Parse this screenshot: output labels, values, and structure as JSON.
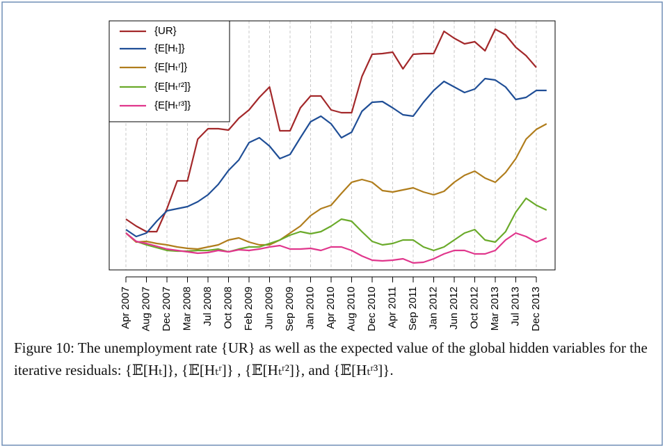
{
  "chart_data": {
    "type": "line",
    "categories": [
      "Apr 2007",
      null,
      "Aug 2007",
      null,
      "Dec 2007",
      null,
      "Mar 2008",
      null,
      "Jul 2008",
      null,
      "Oct 2008",
      null,
      "Feb 2009",
      null,
      "Jun 2009",
      null,
      "Sep 2009",
      null,
      "Jan 2010",
      null,
      "Apr 2010",
      null,
      "Aug 2010",
      null,
      "Dec 2010",
      null,
      "Apr 2011",
      null,
      "Sep 2011",
      null,
      "Jan 2012",
      null,
      "Jun 2012",
      null,
      "Oct 2012",
      null,
      "Mar 2013",
      null,
      "Jul 2013",
      null,
      "Dec 2013",
      null
    ],
    "series": [
      {
        "name": "{UR}",
        "color": "#a3282a",
        "values": [
          73,
          63,
          55,
          55,
          88,
          128,
          128,
          188,
          203,
          203,
          201,
          218,
          230,
          248,
          263,
          200,
          200,
          233,
          250,
          250,
          230,
          226,
          226,
          278,
          310,
          311,
          313,
          289,
          310,
          311,
          311,
          343,
          333,
          325,
          328,
          315,
          346,
          338,
          320,
          308,
          291,
          null
        ]
      },
      {
        "name": "{E[Hₜ]}",
        "color": "#1f4e96",
        "values": [
          58,
          48,
          53,
          70,
          85,
          88,
          91,
          98,
          108,
          123,
          143,
          158,
          183,
          190,
          178,
          160,
          166,
          190,
          213,
          221,
          210,
          190,
          198,
          228,
          241,
          242,
          233,
          223,
          221,
          241,
          258,
          271,
          263,
          255,
          260,
          275,
          273,
          263,
          245,
          248,
          258,
          258
        ]
      },
      {
        "name": "{E[Hₜʳ]}",
        "color": "#b07d1c",
        "values": [
          53,
          40,
          41,
          38,
          36,
          33,
          31,
          30,
          33,
          36,
          43,
          46,
          40,
          36,
          36,
          43,
          53,
          63,
          78,
          88,
          93,
          110,
          126,
          130,
          126,
          114,
          112,
          115,
          118,
          112,
          108,
          113,
          126,
          136,
          142,
          132,
          126,
          140,
          160,
          188,
          202,
          210
        ]
      },
      {
        "name": "{E[Hₜʳ²]}",
        "color": "#6aaa2a",
        "values": [
          53,
          41,
          36,
          32,
          28,
          27,
          27,
          28,
          28,
          30,
          26,
          30,
          33,
          33,
          38,
          43,
          50,
          55,
          52,
          55,
          63,
          73,
          70,
          55,
          41,
          36,
          38,
          43,
          43,
          33,
          28,
          33,
          43,
          53,
          58,
          43,
          40,
          55,
          83,
          103,
          93,
          86
        ]
      },
      {
        "name": "{E[Hₜʳ³]}",
        "color": "#e0368c",
        "values": [
          53,
          41,
          38,
          34,
          30,
          28,
          26,
          24,
          25,
          28,
          26,
          29,
          28,
          30,
          33,
          35,
          30,
          30,
          31,
          28,
          33,
          33,
          28,
          20,
          14,
          13,
          14,
          16,
          10,
          11,
          16,
          23,
          28,
          28,
          23,
          23,
          28,
          43,
          53,
          48,
          40,
          46
        ]
      }
    ],
    "ylim": [
      0,
      358
    ],
    "grid": true,
    "legend": "top-left"
  },
  "caption": "Figure 10: The unemployment rate {UR} as well as the expected value of the global hidden variables for the iterative residuals: {𝔼[Hₜ]}, {𝔼[Hₜʳ]} , {𝔼[Hₜʳ²]}, and {𝔼[Hₜʳ³]}."
}
